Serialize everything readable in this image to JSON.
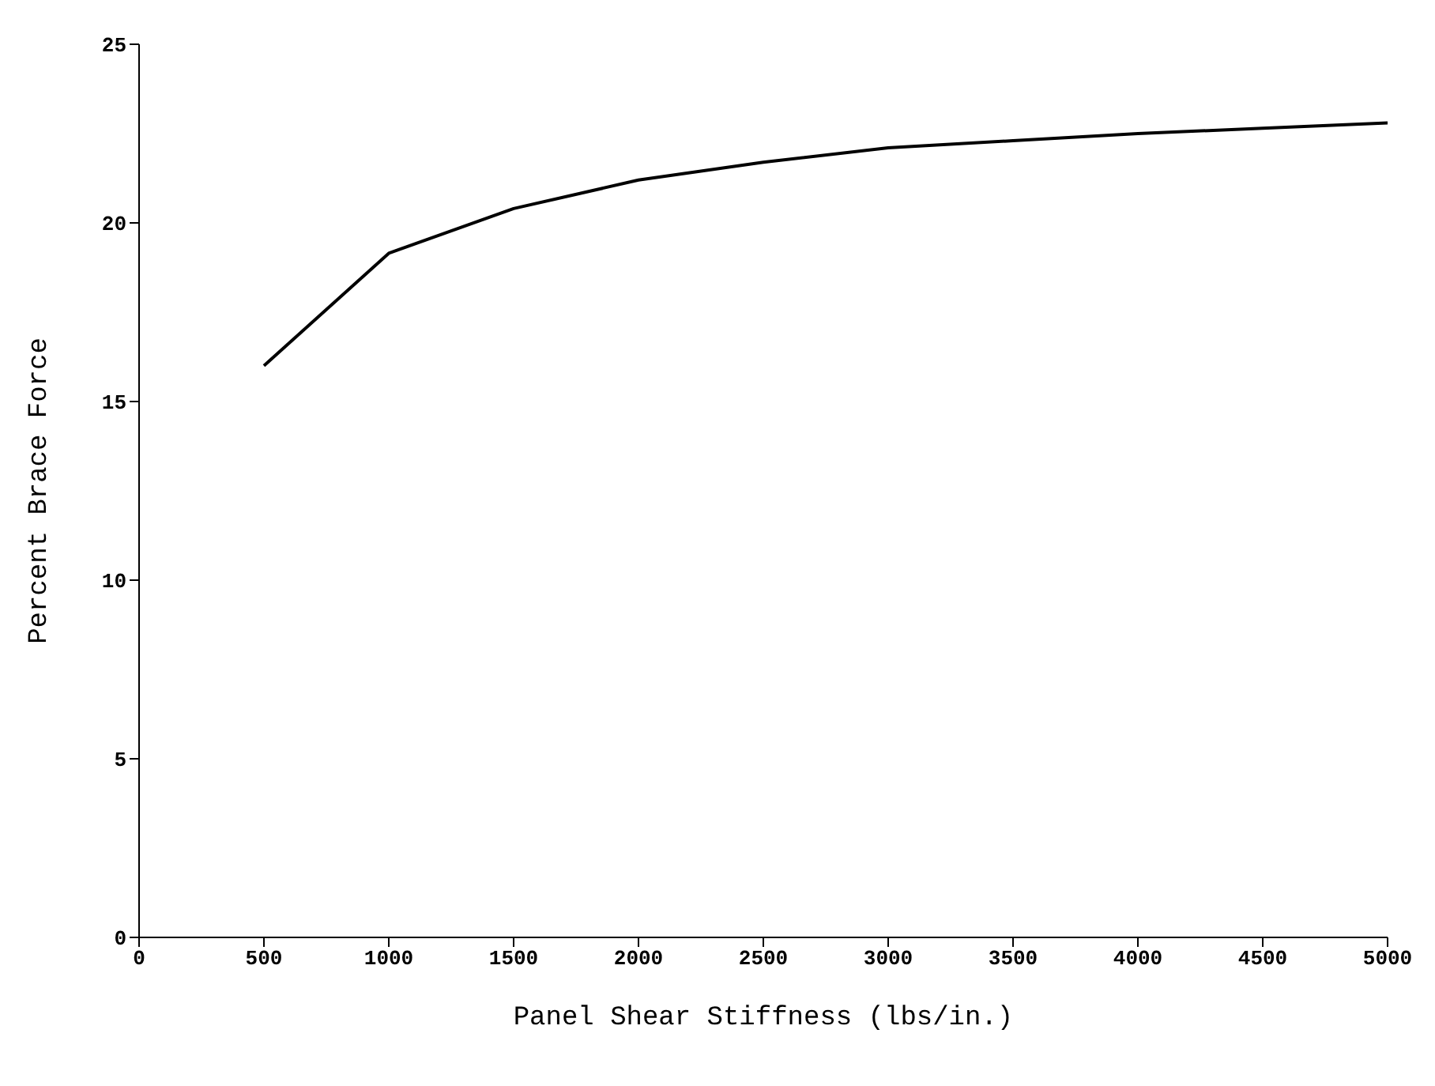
{
  "chart_data": {
    "type": "line",
    "xlabel": "Panel Shear Stiffness (lbs/in.)",
    "ylabel": "Percent Brace Force",
    "x": [
      500,
      1000,
      1500,
      2000,
      2500,
      3000,
      3500,
      4000,
      4500,
      5000
    ],
    "series": [
      {
        "color": "#000000",
        "values": [
          16.0,
          19.15,
          20.4,
          21.2,
          21.7,
          22.1,
          22.3,
          22.5,
          22.65,
          22.8
        ]
      }
    ],
    "xlim": [
      0,
      5000
    ],
    "xticks": [
      0,
      500,
      1000,
      1500,
      2000,
      2500,
      3000,
      3500,
      4000,
      4500,
      5000
    ],
    "ylim": [
      0,
      25
    ],
    "yticks": [
      0,
      5,
      10,
      15,
      20,
      25
    ],
    "grid": false,
    "legend": false,
    "marker": "none",
    "line_style": "solid"
  }
}
